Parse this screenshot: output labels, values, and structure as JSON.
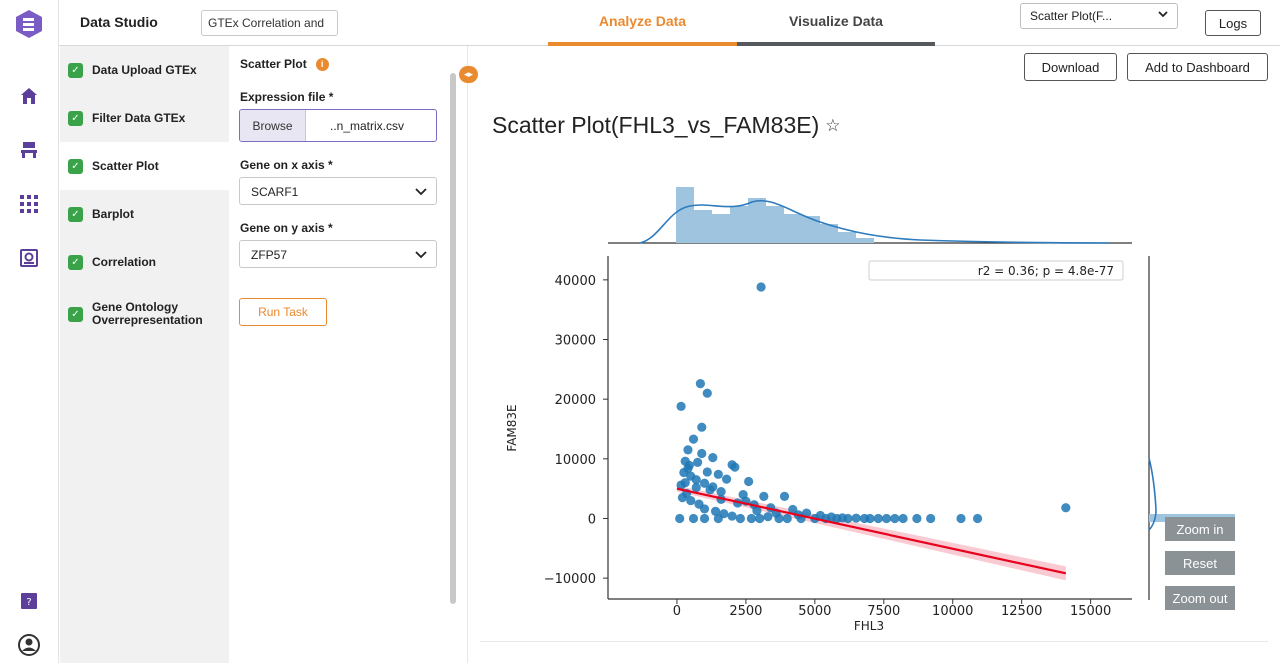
{
  "header": {
    "app_title": "Data Studio",
    "project_name": "GTEx Correlation and",
    "tabs": [
      "Analyze Data",
      "Visualize Data"
    ],
    "plot_selector": "Scatter Plot(F...",
    "logs_label": "Logs"
  },
  "rail_icons": [
    "app-logo-icon",
    "home-icon",
    "workflow-icon",
    "apps-grid-icon",
    "data-inspect-icon",
    "help-doc-icon",
    "user-avatar-icon"
  ],
  "steps": [
    {
      "label": "Data Upload GTEx",
      "status": "done"
    },
    {
      "label": "Filter Data GTEx",
      "status": "done"
    },
    {
      "label": "Scatter Plot",
      "status": "done"
    },
    {
      "label": "Barplot",
      "status": "done"
    },
    {
      "label": "Correlation",
      "status": "done"
    },
    {
      "label": "Gene Ontology Overrepresentation",
      "status": "done"
    }
  ],
  "form": {
    "title": "Scatter Plot",
    "expression_label": "Expression file *",
    "browse_label": "Browse",
    "file_name": "..n_matrix.csv",
    "x_gene_label": "Gene on x axis *",
    "x_gene_value": "SCARF1",
    "y_gene_label": "Gene on y axis *",
    "y_gene_value": "ZFP57",
    "run_label": "Run Task"
  },
  "main": {
    "download_label": "Download",
    "add_dashboard_label": "Add to Dashboard",
    "plot_title": "Scatter Plot(FHL3_vs_FAM83E)",
    "zoom_in": "Zoom in",
    "reset": "Reset",
    "zoom_out": "Zoom out"
  },
  "colors": {
    "accent": "#ea8a2f",
    "brand": "#5b3f9a",
    "success": "#3aa34a",
    "points": "#1f77b4",
    "regression": "#e8001c"
  },
  "chart_data": {
    "type": "scatter",
    "xlabel": "FHL3",
    "ylabel": "FAM83E",
    "annotation": "r2 = 0.36; p = 4.8e-77",
    "xlim": [
      -2500,
      16500
    ],
    "ylim": [
      -13500,
      44000
    ],
    "xticks": [
      0,
      2500,
      5000,
      7500,
      10000,
      12500,
      15000
    ],
    "yticks": [
      -10000,
      0,
      10000,
      20000,
      30000,
      40000
    ],
    "regression_line": {
      "x": [
        0,
        14100
      ],
      "y": [
        5000,
        -9200
      ]
    },
    "points": [
      [
        3050,
        38800
      ],
      [
        850,
        22600
      ],
      [
        1100,
        21000
      ],
      [
        150,
        18800
      ],
      [
        900,
        15300
      ],
      [
        600,
        13300
      ],
      [
        400,
        11500
      ],
      [
        900,
        10900
      ],
      [
        1300,
        10200
      ],
      [
        2000,
        9000
      ],
      [
        2100,
        8600
      ],
      [
        400,
        8400
      ],
      [
        1100,
        7800
      ],
      [
        1500,
        7400
      ],
      [
        1800,
        6600
      ],
      [
        2600,
        6200
      ],
      [
        300,
        6000
      ],
      [
        700,
        5200
      ],
      [
        1200,
        4800
      ],
      [
        2400,
        4000
      ],
      [
        3150,
        3700
      ],
      [
        3900,
        3700
      ],
      [
        1600,
        3200
      ],
      [
        2200,
        2600
      ],
      [
        2800,
        2300
      ],
      [
        3400,
        1800
      ],
      [
        4200,
        1500
      ],
      [
        4700,
        900
      ],
      [
        5200,
        500
      ],
      [
        5600,
        250
      ],
      [
        6000,
        100
      ],
      [
        6500,
        50
      ],
      [
        7000,
        0
      ],
      [
        7600,
        0
      ],
      [
        8200,
        0
      ],
      [
        8700,
        0
      ],
      [
        9200,
        0
      ],
      [
        10300,
        0
      ],
      [
        10900,
        0
      ],
      [
        14100,
        1800
      ],
      [
        200,
        3500
      ],
      [
        500,
        3000
      ],
      [
        800,
        2400
      ],
      [
        1000,
        1600
      ],
      [
        1400,
        1200
      ],
      [
        1700,
        800
      ],
      [
        2000,
        400
      ],
      [
        2300,
        0
      ],
      [
        2700,
        0
      ],
      [
        3000,
        0
      ],
      [
        3300,
        300
      ],
      [
        3700,
        0
      ],
      [
        4000,
        0
      ],
      [
        4500,
        0
      ],
      [
        5000,
        0
      ],
      [
        5400,
        0
      ],
      [
        5800,
        0
      ],
      [
        6200,
        0
      ],
      [
        6800,
        0
      ],
      [
        7300,
        0
      ],
      [
        7900,
        0
      ],
      [
        100,
        0
      ],
      [
        600,
        0
      ],
      [
        1000,
        0
      ],
      [
        1500,
        0
      ],
      [
        300,
        9600
      ],
      [
        500,
        7100
      ],
      [
        700,
        6500
      ],
      [
        1000,
        5900
      ],
      [
        1300,
        5300
      ],
      [
        1600,
        4500
      ],
      [
        2500,
        2900
      ],
      [
        2900,
        1300
      ],
      [
        3600,
        900
      ],
      [
        4400,
        600
      ],
      [
        350,
        4200
      ],
      [
        150,
        5600
      ],
      [
        250,
        7700
      ],
      [
        450,
        8900
      ],
      [
        750,
        9400
      ]
    ]
  }
}
